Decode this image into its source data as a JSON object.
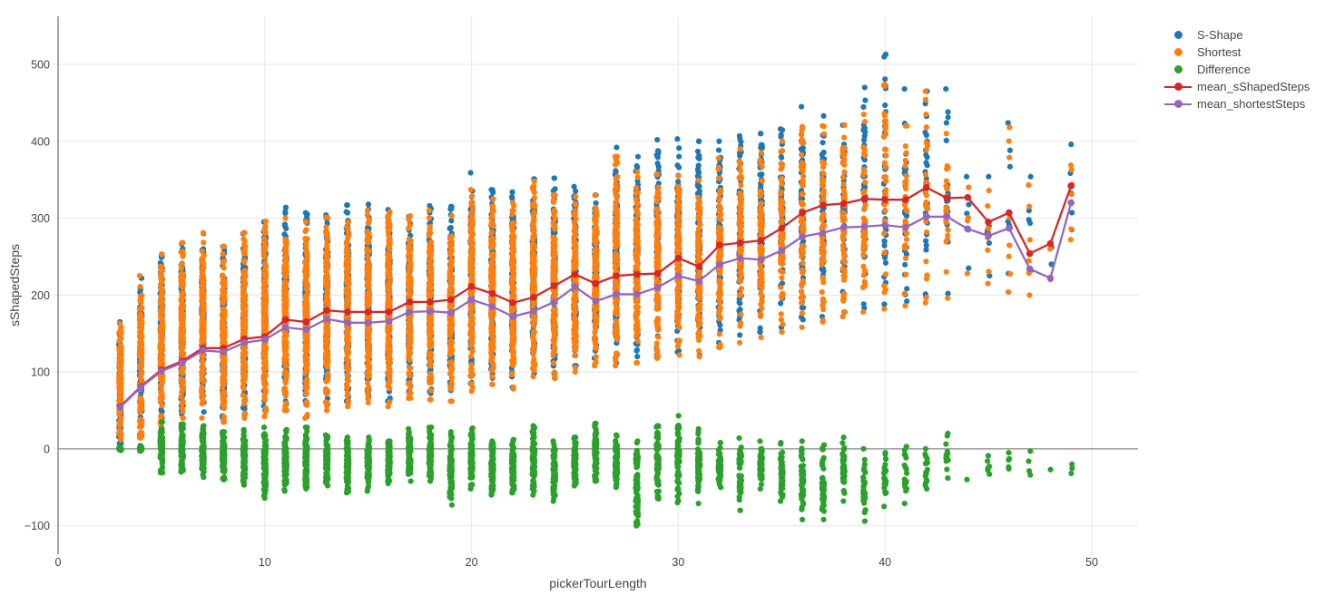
{
  "chart_data": {
    "type": "scatter",
    "title": "",
    "xlabel": "pickerTourLength",
    "ylabel": "sShapedSteps",
    "xlim": [
      0,
      52.24
    ],
    "ylim": [
      -137,
      562.5
    ],
    "xticks": {
      "values": [
        0,
        10,
        20,
        30,
        40,
        50
      ],
      "labels": [
        "0",
        "10",
        "20",
        "30",
        "40",
        "50"
      ]
    },
    "yticks": {
      "values": [
        -100,
        0,
        100,
        200,
        300,
        400,
        500
      ],
      "labels": [
        "−100",
        "0",
        "100",
        "200",
        "300",
        "400",
        "500"
      ]
    },
    "grid": true,
    "zeroline": true,
    "legend_position": "outside-right-top",
    "colors": {
      "background": "#ffffff",
      "grid": "#ebebeb",
      "axis": "#888888",
      "zeroline": "#888888",
      "text": "#444444",
      "s_shape": "#1f77b4",
      "shortest": "#ff7f0e",
      "difference": "#2ca02c",
      "mean_sshaped": "#d62728",
      "mean_shortest": "#9467bd"
    },
    "column_format": "[pickerTourLength, min_value, max_value, approx_point_count]",
    "series": [
      {
        "name": "S-Shape",
        "kind": "points",
        "color": "#1f77b4",
        "columns": [
          [
            3,
            0,
            165,
            100
          ],
          [
            4,
            2,
            222,
            100
          ],
          [
            5,
            40,
            253,
            130
          ],
          [
            6,
            45,
            268,
            130
          ],
          [
            7,
            48,
            280,
            130
          ],
          [
            8,
            40,
            263,
            130
          ],
          [
            9,
            45,
            280,
            140
          ],
          [
            10,
            50,
            295,
            140
          ],
          [
            11,
            55,
            314,
            140
          ],
          [
            12,
            42,
            307,
            140
          ],
          [
            13,
            58,
            304,
            140
          ],
          [
            14,
            62,
            317,
            140
          ],
          [
            15,
            68,
            318,
            140
          ],
          [
            16,
            62,
            311,
            140
          ],
          [
            17,
            74,
            302,
            140
          ],
          [
            18,
            72,
            316,
            140
          ],
          [
            19,
            76,
            315,
            130
          ],
          [
            20,
            85,
            359,
            130
          ],
          [
            21,
            92,
            337,
            130
          ],
          [
            22,
            80,
            334,
            130
          ],
          [
            23,
            98,
            351,
            130
          ],
          [
            24,
            98,
            352,
            120
          ],
          [
            25,
            108,
            341,
            120
          ],
          [
            26,
            118,
            330,
            110
          ],
          [
            27,
            112,
            392,
            110
          ],
          [
            28,
            120,
            380,
            100
          ],
          [
            29,
            122,
            402,
            100
          ],
          [
            30,
            126,
            403,
            100
          ],
          [
            31,
            122,
            400,
            90
          ],
          [
            32,
            138,
            400,
            90
          ],
          [
            33,
            148,
            407,
            80
          ],
          [
            34,
            152,
            410,
            80
          ],
          [
            35,
            158,
            416,
            70
          ],
          [
            36,
            168,
            445,
            60
          ],
          [
            37,
            172,
            433,
            55
          ],
          [
            38,
            178,
            421,
            50
          ],
          [
            39,
            183,
            470,
            45
          ],
          [
            40,
            188,
            513,
            40
          ],
          [
            41,
            192,
            468,
            30
          ],
          [
            42,
            198,
            465,
            28
          ],
          [
            43,
            202,
            468,
            20
          ],
          [
            44,
            235,
            354,
            5
          ],
          [
            45,
            225,
            354,
            8
          ],
          [
            46,
            228,
            424,
            7
          ],
          [
            47,
            232,
            354,
            5
          ],
          [
            48,
            240,
            262,
            2
          ],
          [
            49,
            285,
            396,
            6
          ]
        ]
      },
      {
        "name": "Shortest",
        "kind": "points",
        "color": "#ff7f0e",
        "columns": [
          [
            3,
            0,
            163,
            110
          ],
          [
            4,
            0,
            225,
            110
          ],
          [
            5,
            30,
            253,
            150
          ],
          [
            6,
            40,
            268,
            150
          ],
          [
            7,
            40,
            281,
            150
          ],
          [
            8,
            35,
            263,
            150
          ],
          [
            9,
            40,
            281,
            160
          ],
          [
            10,
            42,
            296,
            160
          ],
          [
            11,
            50,
            300,
            160
          ],
          [
            12,
            40,
            295,
            160
          ],
          [
            13,
            50,
            301,
            160
          ],
          [
            14,
            55,
            295,
            160
          ],
          [
            15,
            60,
            310,
            160
          ],
          [
            16,
            55,
            308,
            160
          ],
          [
            17,
            66,
            303,
            160
          ],
          [
            18,
            64,
            310,
            160
          ],
          [
            19,
            62,
            303,
            150
          ],
          [
            20,
            75,
            337,
            150
          ],
          [
            21,
            84,
            325,
            150
          ],
          [
            22,
            78,
            320,
            150
          ],
          [
            23,
            94,
            348,
            150
          ],
          [
            24,
            92,
            330,
            140
          ],
          [
            25,
            100,
            328,
            140
          ],
          [
            26,
            108,
            330,
            130
          ],
          [
            27,
            108,
            380,
            130
          ],
          [
            28,
            112,
            360,
            120
          ],
          [
            29,
            118,
            357,
            120
          ],
          [
            30,
            122,
            355,
            115
          ],
          [
            31,
            120,
            349,
            105
          ],
          [
            32,
            132,
            378,
            100
          ],
          [
            33,
            138,
            390,
            90
          ],
          [
            34,
            145,
            385,
            90
          ],
          [
            35,
            152,
            400,
            80
          ],
          [
            36,
            158,
            419,
            70
          ],
          [
            37,
            165,
            420,
            60
          ],
          [
            38,
            172,
            421,
            55
          ],
          [
            39,
            178,
            435,
            50
          ],
          [
            40,
            182,
            474,
            42
          ],
          [
            41,
            186,
            420,
            32
          ],
          [
            42,
            190,
            465,
            30
          ],
          [
            43,
            196,
            410,
            22
          ],
          [
            44,
            228,
            340,
            5
          ],
          [
            45,
            215,
            336,
            9
          ],
          [
            46,
            204,
            418,
            8
          ],
          [
            47,
            200,
            343,
            6
          ],
          [
            48,
            220,
            260,
            2
          ],
          [
            49,
            272,
            369,
            6
          ]
        ]
      },
      {
        "name": "Difference",
        "kind": "points",
        "color": "#2ca02c",
        "columns": [
          [
            3,
            -2,
            2,
            40
          ],
          [
            4,
            -3,
            3,
            40
          ],
          [
            5,
            -31,
            35,
            90
          ],
          [
            6,
            -30,
            32,
            90
          ],
          [
            7,
            -37,
            30,
            90
          ],
          [
            8,
            -40,
            22,
            90
          ],
          [
            9,
            -47,
            25,
            90
          ],
          [
            10,
            -64,
            28,
            90
          ],
          [
            11,
            -55,
            25,
            90
          ],
          [
            12,
            -52,
            28,
            90
          ],
          [
            13,
            -48,
            18,
            90
          ],
          [
            14,
            -57,
            15,
            90
          ],
          [
            15,
            -55,
            15,
            90
          ],
          [
            16,
            -45,
            10,
            90
          ],
          [
            17,
            -42,
            26,
            90
          ],
          [
            18,
            -42,
            28,
            90
          ],
          [
            19,
            -73,
            22,
            85
          ],
          [
            20,
            -52,
            27,
            85
          ],
          [
            21,
            -60,
            10,
            85
          ],
          [
            22,
            -57,
            12,
            85
          ],
          [
            23,
            -60,
            30,
            85
          ],
          [
            24,
            -68,
            10,
            80
          ],
          [
            25,
            -48,
            15,
            80
          ],
          [
            26,
            -42,
            33,
            75
          ],
          [
            27,
            -50,
            18,
            75
          ],
          [
            28,
            -100,
            10,
            70
          ],
          [
            29,
            -65,
            30,
            70
          ],
          [
            30,
            -70,
            43,
            65
          ],
          [
            31,
            -71,
            26,
            60
          ],
          [
            32,
            -50,
            8,
            60
          ],
          [
            33,
            -80,
            14,
            55
          ],
          [
            34,
            -52,
            10,
            55
          ],
          [
            35,
            -68,
            8,
            50
          ],
          [
            36,
            -92,
            10,
            45
          ],
          [
            37,
            -92,
            5,
            40
          ],
          [
            38,
            -68,
            15,
            35
          ],
          [
            39,
            -94,
            0,
            30
          ],
          [
            40,
            -75,
            -5,
            25
          ],
          [
            41,
            -71,
            3,
            20
          ],
          [
            42,
            -52,
            0,
            18
          ],
          [
            43,
            -38,
            20,
            14
          ],
          [
            44,
            -40,
            -40,
            1
          ],
          [
            45,
            -33,
            -9,
            6
          ],
          [
            46,
            -26,
            -5,
            5
          ],
          [
            47,
            -34,
            -3,
            4
          ],
          [
            48,
            -27,
            -27,
            1
          ],
          [
            49,
            -32,
            -20,
            3
          ]
        ]
      },
      {
        "name": "mean_sShapedSteps",
        "kind": "line",
        "color": "#d62728",
        "x": [
          3,
          4,
          5,
          6,
          7,
          8,
          9,
          10,
          11,
          12,
          13,
          14,
          15,
          16,
          17,
          18,
          19,
          20,
          21,
          22,
          23,
          24,
          25,
          26,
          27,
          28,
          29,
          30,
          31,
          32,
          33,
          34,
          35,
          36,
          37,
          38,
          39,
          40,
          41,
          42,
          43,
          44,
          45,
          46,
          47,
          48,
          49
        ],
        "y": [
          55,
          81,
          103,
          114,
          131,
          131,
          143,
          146,
          168,
          165,
          180,
          178,
          178,
          178,
          191,
          191,
          194,
          211,
          202,
          190,
          197,
          212,
          227,
          215,
          225,
          227,
          228,
          248,
          237,
          265,
          268,
          271,
          287,
          307,
          317,
          319,
          325,
          324,
          324,
          340,
          326,
          327,
          295,
          307,
          254,
          267,
          342
        ]
      },
      {
        "name": "mean_shortestSteps",
        "kind": "line",
        "color": "#9467bd",
        "x": [
          3,
          4,
          5,
          6,
          7,
          8,
          9,
          10,
          11,
          12,
          13,
          14,
          15,
          16,
          17,
          18,
          19,
          20,
          21,
          22,
          23,
          24,
          25,
          26,
          27,
          28,
          29,
          30,
          31,
          32,
          33,
          34,
          35,
          36,
          37,
          38,
          39,
          40,
          41,
          42,
          43,
          44,
          45,
          46,
          47,
          48,
          49
        ],
        "y": [
          54,
          80,
          101,
          112,
          128,
          126,
          138,
          142,
          158,
          155,
          169,
          164,
          164,
          166,
          178,
          179,
          177,
          194,
          185,
          172,
          179,
          191,
          211,
          192,
          201,
          201,
          210,
          225,
          218,
          240,
          248,
          246,
          258,
          276,
          281,
          288,
          289,
          291,
          288,
          302,
          302,
          286,
          277,
          287,
          234,
          222,
          320
        ]
      }
    ]
  }
}
